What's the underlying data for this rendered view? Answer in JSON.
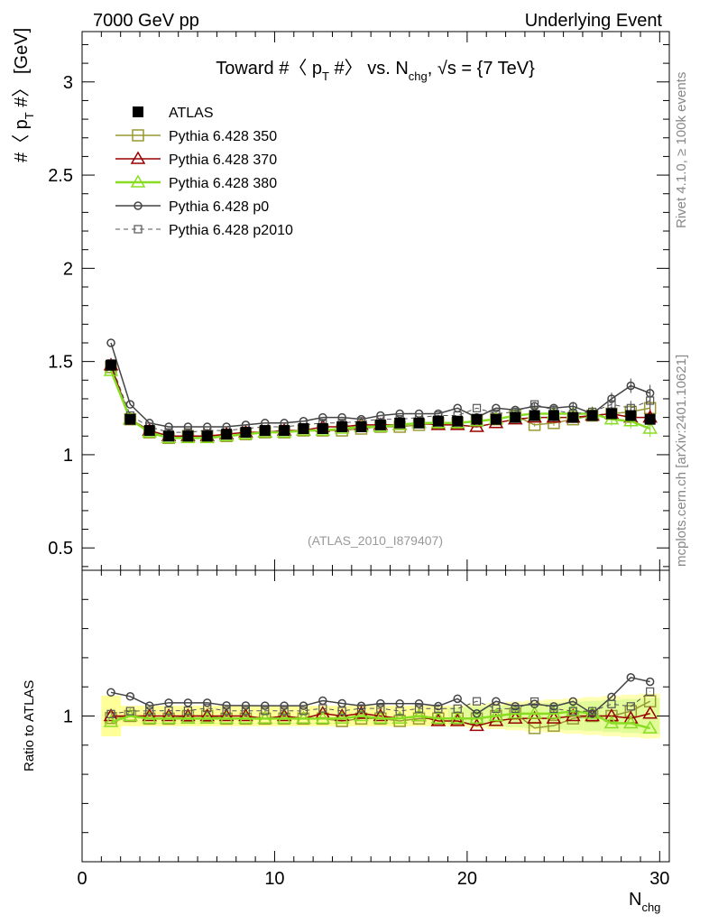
{
  "header": {
    "left": "7000 GeV pp",
    "right": "Underlying Event"
  },
  "side_text": {
    "rivet": "Rivet 4.1.0, ≥ 100k events",
    "site": "mcplots.cern.ch [arXiv:2401.10621]"
  },
  "watermark": "(ATLAS_2010_I879407)",
  "colors": {
    "atlas": "#000000",
    "p350": "#999933",
    "p370": "#990000",
    "p380": "#88dd22",
    "p0": "#444444",
    "p2010": "#555555",
    "band_yellow": "#ffff99",
    "band_green": "#88ee99"
  },
  "chart_data": {
    "type": "line",
    "title": "Toward #〈 p_T #〉 vs. N_chg, √s = {7 TeV}",
    "title_parts": {
      "a": "Toward #〈 p",
      "a_sub": "T",
      "b": " #〉 vs. N",
      "b_sub": "chg",
      "c": ", √s = {7 TeV}"
    },
    "ylabel_parts": {
      "a": "#〈 p",
      "a_sub": "T",
      "b": " #〉 [GeV]"
    },
    "ratio_ylabel": "Ratio to ATLAS",
    "xlabel_parts": {
      "a": "N",
      "a_sub": "chg"
    },
    "xlim": [
      0,
      30.5
    ],
    "ylim": [
      0.38,
      3.27
    ],
    "ratio_ylim": [
      0.5,
      1.5
    ],
    "x_ticks": [
      "0",
      "10",
      "20",
      "30"
    ],
    "y_ticks": [
      "0.5",
      "1",
      "1.5",
      "2",
      "2.5",
      "3"
    ],
    "ratio_y_ticks": [
      "1"
    ],
    "x": [
      1.5,
      2.5,
      3.5,
      4.5,
      5.5,
      6.5,
      7.5,
      8.5,
      9.5,
      10.5,
      11.5,
      12.5,
      13.5,
      14.5,
      15.5,
      16.5,
      17.5,
      18.5,
      19.5,
      20.5,
      21.5,
      22.5,
      23.5,
      24.5,
      25.5,
      26.5,
      27.5,
      28.5,
      29.5
    ],
    "series": [
      {
        "key": "atlas",
        "name": "ATLAS",
        "values": [
          1.48,
          1.19,
          1.13,
          1.1,
          1.1,
          1.1,
          1.11,
          1.12,
          1.13,
          1.13,
          1.14,
          1.14,
          1.15,
          1.15,
          1.16,
          1.17,
          1.17,
          1.18,
          1.18,
          1.19,
          1.19,
          1.2,
          1.21,
          1.21,
          1.2,
          1.21,
          1.22,
          1.21,
          1.19
        ]
      },
      {
        "key": "p350",
        "name": "Pythia 6.428 350",
        "values": [
          1.47,
          1.19,
          1.12,
          1.09,
          1.1,
          1.1,
          1.1,
          1.11,
          1.12,
          1.12,
          1.13,
          1.13,
          1.13,
          1.14,
          1.15,
          1.15,
          1.16,
          1.17,
          1.17,
          1.18,
          1.19,
          1.21,
          1.16,
          1.17,
          1.19,
          1.21,
          1.22,
          1.23,
          1.25
        ]
      },
      {
        "key": "p370",
        "name": "Pythia 6.428 370",
        "values": [
          1.48,
          1.19,
          1.13,
          1.1,
          1.1,
          1.1,
          1.11,
          1.12,
          1.12,
          1.13,
          1.13,
          1.15,
          1.15,
          1.16,
          1.16,
          1.16,
          1.17,
          1.16,
          1.16,
          1.15,
          1.17,
          1.19,
          1.2,
          1.2,
          1.2,
          1.21,
          1.22,
          1.2,
          1.2
        ]
      },
      {
        "key": "p380",
        "name": "Pythia 6.428 380",
        "values": [
          1.45,
          1.19,
          1.12,
          1.09,
          1.09,
          1.09,
          1.1,
          1.11,
          1.12,
          1.12,
          1.13,
          1.13,
          1.14,
          1.15,
          1.15,
          1.16,
          1.17,
          1.17,
          1.17,
          1.18,
          1.19,
          1.21,
          1.22,
          1.22,
          1.22,
          1.22,
          1.19,
          1.18,
          1.14
        ]
      },
      {
        "key": "p0",
        "name": "Pythia 6.428 p0",
        "values": [
          1.6,
          1.27,
          1.17,
          1.15,
          1.15,
          1.15,
          1.15,
          1.16,
          1.17,
          1.17,
          1.18,
          1.2,
          1.2,
          1.19,
          1.21,
          1.22,
          1.22,
          1.22,
          1.25,
          1.2,
          1.25,
          1.24,
          1.26,
          1.25,
          1.26,
          1.22,
          1.3,
          1.37,
          1.33
        ]
      },
      {
        "key": "p2010",
        "name": "Pythia 6.428 p2010",
        "values": [
          1.49,
          1.21,
          1.15,
          1.12,
          1.12,
          1.13,
          1.13,
          1.14,
          1.15,
          1.15,
          1.16,
          1.17,
          1.17,
          1.18,
          1.19,
          1.19,
          1.2,
          1.21,
          1.21,
          1.25,
          1.22,
          1.23,
          1.27,
          1.24,
          1.22,
          1.23,
          1.27,
          1.25,
          1.29
        ]
      }
    ],
    "legend_position": "top-left",
    "grid": false
  }
}
